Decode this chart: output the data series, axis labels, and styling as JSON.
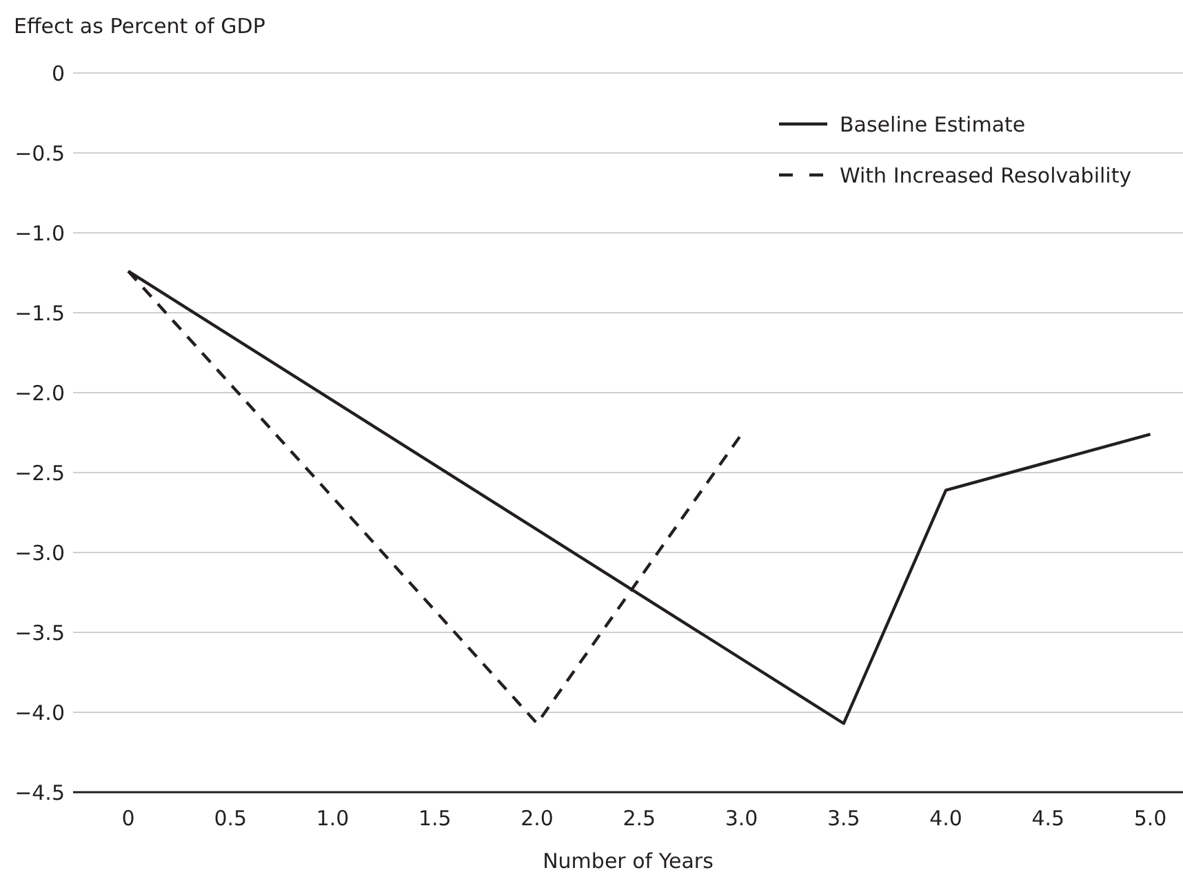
{
  "chart_data": {
    "type": "line",
    "ylabel": "Effect as Percent of GDP",
    "xlabel": "Number of Years",
    "series": [
      {
        "name": "Baseline Estimate",
        "color": "#231f20",
        "line_style": "solid",
        "x": [
          0,
          3.5,
          4.0,
          5.0
        ],
        "values": [
          -1.24,
          -4.07,
          -2.61,
          -2.26
        ]
      },
      {
        "name": "With Increased Resolvability",
        "color": "#231f20",
        "line_style": "dashed",
        "x": [
          0,
          2.0,
          3.0
        ],
        "values": [
          -1.24,
          -4.07,
          -2.26
        ]
      }
    ],
    "xlim": [
      -0.27,
      5.16
    ],
    "xticks": [
      0,
      0.5,
      {
        "value": 1,
        "label": "1.0"
      },
      1.5,
      {
        "value": 2,
        "label": "2.0"
      },
      2.5,
      {
        "value": 3,
        "label": "3.0"
      },
      3.5,
      {
        "value": 4,
        "label": "4.0"
      },
      4.5,
      {
        "value": 5,
        "label": "5.0"
      }
    ],
    "ylim": [
      -4.5,
      0
    ],
    "yticks": [
      0,
      {
        "value": -0.5,
        "label": "−0.5"
      },
      {
        "value": -1,
        "label": "−1.0"
      },
      {
        "value": -1.5,
        "label": "−1.5"
      },
      {
        "value": -2,
        "label": "−2.0"
      },
      {
        "value": -2.5,
        "label": "−2.5"
      },
      {
        "value": -3,
        "label": "−3.0"
      },
      {
        "value": -3.5,
        "label": "−3.5"
      },
      {
        "value": -4,
        "label": "−4.0"
      },
      {
        "value": -4.5,
        "label": "−4.5"
      }
    ],
    "grid": "y",
    "legend": "top right",
    "marker": "none"
  }
}
